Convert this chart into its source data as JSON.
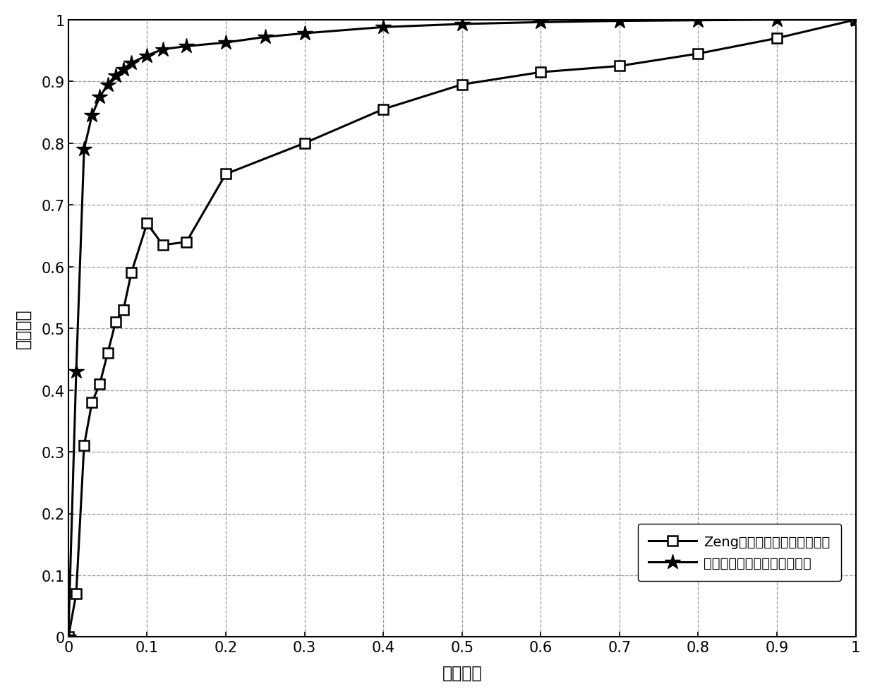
{
  "title": "",
  "xlabel": "虚警概率",
  "ylabel": "检测概率",
  "xlim": [
    0,
    1
  ],
  "ylim": [
    0,
    1
  ],
  "xticks": [
    0,
    0.1,
    0.2,
    0.3,
    0.4,
    0.5,
    0.6,
    0.7,
    0.8,
    0.9,
    1.0
  ],
  "yticks": [
    0,
    0.1,
    0.2,
    0.3,
    0.4,
    0.5,
    0.6,
    0.7,
    0.8,
    0.9,
    1.0
  ],
  "line1_x": [
    0.0,
    0.01,
    0.02,
    0.03,
    0.04,
    0.05,
    0.06,
    0.07,
    0.08,
    0.1,
    0.12,
    0.15,
    0.2,
    0.3,
    0.4,
    0.5,
    0.6,
    0.7,
    0.8,
    0.9,
    1.0
  ],
  "line1_y": [
    0.0,
    0.07,
    0.31,
    0.38,
    0.41,
    0.46,
    0.51,
    0.53,
    0.59,
    0.67,
    0.635,
    0.64,
    0.75,
    0.8,
    0.855,
    0.895,
    0.915,
    0.925,
    0.945,
    0.97,
    1.0
  ],
  "line2_x": [
    0.0,
    0.01,
    0.02,
    0.03,
    0.04,
    0.05,
    0.06,
    0.07,
    0.08,
    0.1,
    0.12,
    0.15,
    0.2,
    0.25,
    0.3,
    0.4,
    0.5,
    0.6,
    0.7,
    0.8,
    0.9,
    1.0
  ],
  "line2_y": [
    0.0,
    0.43,
    0.79,
    0.845,
    0.875,
    0.895,
    0.91,
    0.92,
    0.93,
    0.942,
    0.952,
    0.957,
    0.963,
    0.972,
    0.978,
    0.988,
    0.993,
    0.996,
    0.998,
    0.999,
    1.0,
    1.0
  ],
  "legend1": "Zeng等人提出的频谱感知方法",
  "legend2": "本发明所提出的频谱感知方法",
  "line_color": "#000000",
  "background_color": "#ffffff",
  "grid_color": "#999999"
}
